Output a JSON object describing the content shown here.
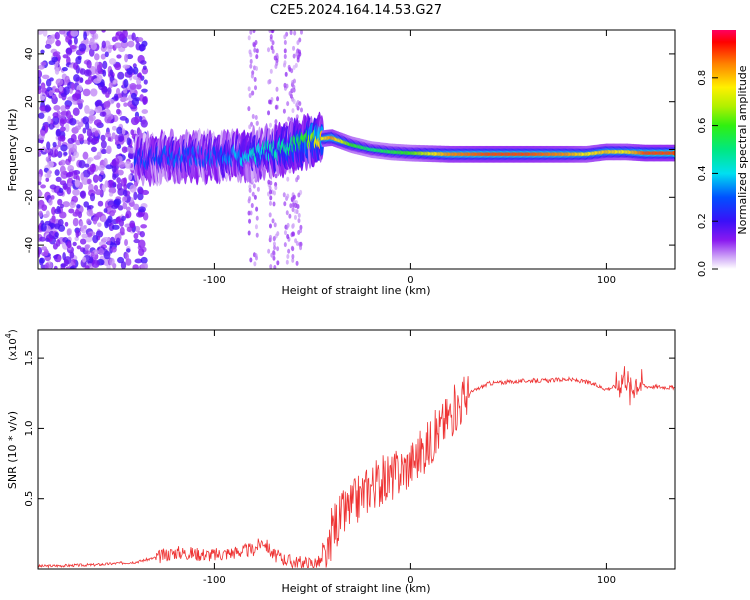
{
  "title": "C2E5.2024.164.14.53.G27",
  "chart_data": [
    {
      "type": "heatmap",
      "xlabel": "Height of straight line (km)",
      "ylabel": "Frequency (Hz)",
      "xlim": [
        -190,
        135
      ],
      "ylim": [
        -50,
        50
      ],
      "x_ticks": [
        -100,
        0,
        100
      ],
      "x_tick_labels": [
        "-100",
        "0",
        "100"
      ],
      "y_ticks": [
        -40,
        -20,
        0,
        20,
        40
      ],
      "y_tick_labels": [
        "-40",
        "-20",
        "0",
        "20",
        "40"
      ],
      "colorbar": {
        "label": "Normalized spectral amplitude",
        "range": [
          0,
          1
        ],
        "ticks": [
          0.0,
          0.2,
          0.4,
          0.6,
          0.8
        ],
        "tick_labels": [
          "0.0",
          "0.2",
          "0.4",
          "0.6",
          "0.8"
        ]
      },
      "ridge": {
        "x": [
          -140,
          -120,
          -100,
          -80,
          -60,
          -50,
          -40,
          -30,
          -20,
          -10,
          0,
          20,
          40,
          60,
          80,
          90,
          100,
          110,
          120,
          135
        ],
        "freq": [
          -4,
          -3,
          -3,
          -2,
          1,
          4,
          5,
          2,
          0,
          -1,
          -1.5,
          -2,
          -2,
          -2,
          -2,
          -2,
          -1,
          -1,
          -1.5,
          -1.5
        ],
        "amplitude": [
          0.2,
          0.25,
          0.25,
          0.35,
          0.45,
          0.6,
          0.85,
          0.6,
          0.5,
          0.55,
          0.6,
          0.85,
          0.9,
          0.9,
          0.85,
          0.75,
          0.8,
          0.75,
          0.9,
          0.9
        ]
      }
    },
    {
      "type": "line",
      "xlabel": "Height of straight line (km)",
      "ylabel": "SNR (10 * v/v)",
      "y_scale_note": "(x10",
      "y_scale_exp": "4",
      "xlim": [
        -190,
        135
      ],
      "ylim": [
        0,
        1.7
      ],
      "x_ticks": [
        -100,
        0,
        100
      ],
      "x_tick_labels": [
        "-100",
        "0",
        "100"
      ],
      "y_ticks": [
        0.5,
        1.0,
        1.5
      ],
      "y_tick_labels": [
        "0.5",
        "1.0",
        "1.5"
      ],
      "color": "#ee3333",
      "series": [
        {
          "x": [
            -190,
            -160,
            -140,
            -130,
            -120,
            -100,
            -90,
            -80,
            -75,
            -70,
            -60,
            -50,
            -42,
            -40,
            -30,
            -20,
            -10,
            0,
            10,
            20,
            30,
            40,
            50,
            60,
            70,
            80,
            90,
            100,
            105,
            110,
            112,
            115,
            120,
            135
          ],
          "y": [
            0.02,
            0.03,
            0.05,
            0.08,
            0.12,
            0.1,
            0.12,
            0.14,
            0.2,
            0.1,
            0.05,
            0.04,
            0.06,
            0.3,
            0.45,
            0.6,
            0.65,
            0.75,
            0.9,
            1.1,
            1.25,
            1.32,
            1.33,
            1.34,
            1.34,
            1.35,
            1.33,
            1.28,
            1.3,
            1.4,
            1.25,
            1.35,
            1.3,
            1.29
          ]
        }
      ]
    }
  ]
}
